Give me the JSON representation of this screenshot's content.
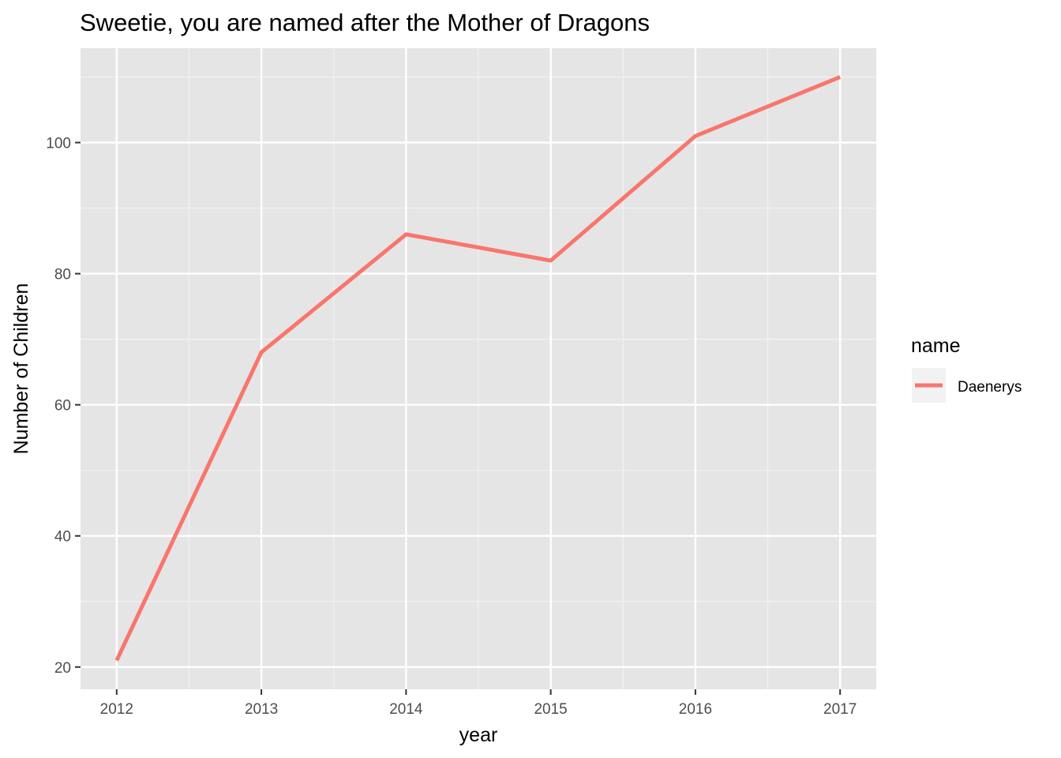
{
  "chart_data": {
    "type": "line",
    "title": "Sweetie, you are named after the Mother of Dragons",
    "xlabel": "year",
    "ylabel": "Number of Children",
    "x": [
      2012,
      2013,
      2014,
      2015,
      2016,
      2017
    ],
    "xlim": [
      2011.75,
      2017.25
    ],
    "ylim": [
      16.6,
      114.4
    ],
    "x_ticks": [
      2012,
      2013,
      2014,
      2015,
      2016,
      2017
    ],
    "y_ticks": [
      20,
      40,
      60,
      80,
      100
    ],
    "x_tick_labels": [
      "2012",
      "2013",
      "2014",
      "2015",
      "2016",
      "2017"
    ],
    "y_tick_labels": [
      "20",
      "40",
      "60",
      "80",
      "100"
    ],
    "grid": true,
    "panel_background": "#e5e5e5",
    "legend": {
      "title": "name",
      "placement": "right",
      "entries": [
        "Daenerys"
      ]
    },
    "series": [
      {
        "name": "Daenerys",
        "color": "#f8766d",
        "values": [
          21,
          68,
          86,
          82,
          101,
          110
        ]
      }
    ]
  }
}
